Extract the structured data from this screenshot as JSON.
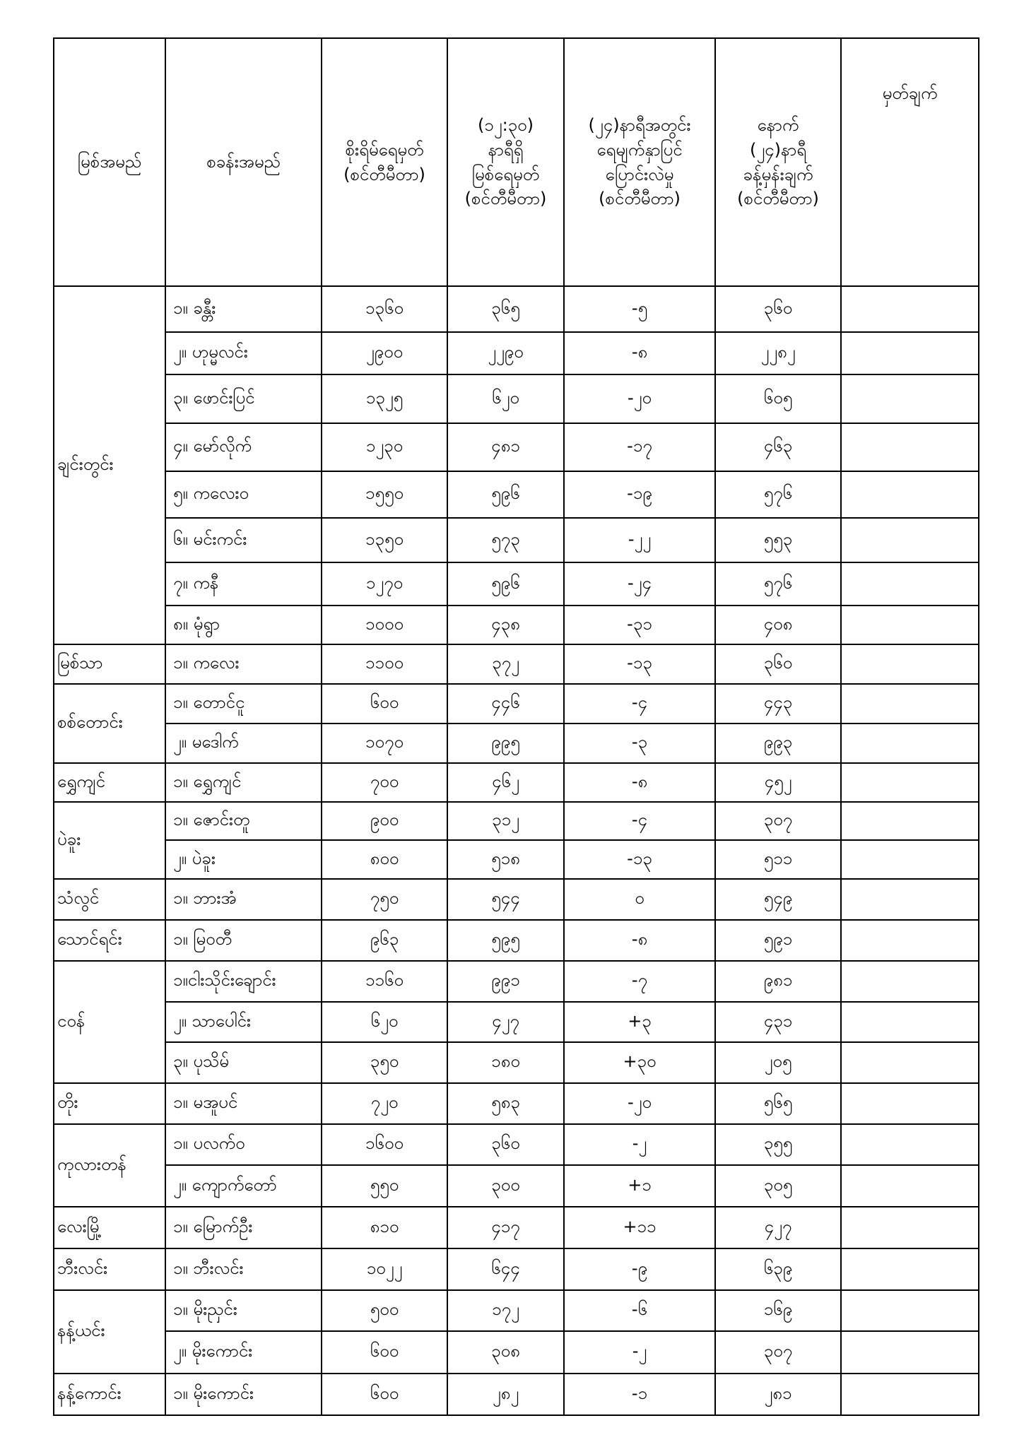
{
  "headers": {
    "river": "မြစ်အမည်",
    "station": "စခန်းအမည်",
    "danger": "စိုးရိမ်ရေမှတ်\n(စင်တီမီတာ)",
    "current": "(၁၂:၃၀)\nနာရီရှိ\nမြစ်ရေမှတ်\n(စင်တီမီတာ)",
    "change": "(၂၄)နာရီအတွင်း\nရေမျက်နှာပြင်\nပြောင်းလဲမှု\n(စင်တီမီတာ)",
    "forecast": "နောက်\n(၂၄)နာရီ\nခန့်မှန်းချက်\n(စင်တီမီတာ)",
    "remark": "မှတ်ချက်"
  },
  "rivers": [
    {
      "name": "ချင်းတွင်း",
      "stations": [
        {
          "station": "၁။ ခန္တီး",
          "danger": "၁၃၆၀",
          "current": "၃၆၅",
          "change": "-၅",
          "forecast": "၃၆၀",
          "remark": ""
        },
        {
          "station": "၂။ ဟုမ္မလင်း",
          "danger": "၂၉၀၀",
          "current": "၂၂၉၀",
          "change": "-၈",
          "forecast": "၂၂၈၂",
          "remark": ""
        },
        {
          "station": "၃။ ဖောင်းပြင်",
          "danger": "၁၃၂၅",
          "current": "၆၂၀",
          "change": "-၂၀",
          "forecast": "၆၀၅",
          "remark": ""
        },
        {
          "station": "၄။ မော်လိုက်",
          "danger": "၁၂၃၀",
          "current": "၄၈၁",
          "change": "-၁၇",
          "forecast": "၄၆၃",
          "remark": ""
        },
        {
          "station": "၅။ ကလေးဝ",
          "danger": "၁၅၅၀",
          "current": "၅၉၆",
          "change": "-၁၉",
          "forecast": "၅၇၆",
          "remark": ""
        },
        {
          "station": "၆။ မင်းကင်း",
          "danger": "၁၃၅၀",
          "current": "၅၇၃",
          "change": "-၂၂",
          "forecast": "၅၅၃",
          "remark": ""
        },
        {
          "station": "၇။ ကနီ",
          "danger": "၁၂၇၀",
          "current": "၅၉၆",
          "change": "-၂၄",
          "forecast": "၅၇၆",
          "remark": ""
        },
        {
          "station": "၈။ မုံရွာ",
          "danger": "၁၀၀၀",
          "current": "၄၃၈",
          "change": "-၃၁",
          "forecast": "၄၀၈",
          "remark": ""
        }
      ]
    },
    {
      "name": "မြစ်သာ",
      "stations": [
        {
          "station": "၁။ ကလေး",
          "danger": "၁၁၀၀",
          "current": "၃၇၂",
          "change": "-၁၃",
          "forecast": "၃၆၀",
          "remark": ""
        }
      ]
    },
    {
      "name": "စစ်တောင်း",
      "stations": [
        {
          "station": "၁။ တောင်ငူ",
          "danger": "၆၀၀",
          "current": "၄၄၆",
          "change": "-၄",
          "forecast": "၄၄၃",
          "remark": ""
        },
        {
          "station": "၂။ မဒေါက်",
          "danger": "၁၀၇၀",
          "current": "၉၉၅",
          "change": "-၃",
          "forecast": "၉၉၃",
          "remark": ""
        }
      ]
    },
    {
      "name": "ရွှေကျင်",
      "stations": [
        {
          "station": "၁။ ရွှေကျင်",
          "danger": "၇၀၀",
          "current": "၄၆၂",
          "change": "-၈",
          "forecast": "၄၅၂",
          "remark": ""
        }
      ]
    },
    {
      "name": "ပဲခူး",
      "stations": [
        {
          "station": "၁။ ဇောင်းတူ",
          "danger": "၉၀၀",
          "current": "၃၁၂",
          "change": "-၄",
          "forecast": "၃၀၇",
          "remark": ""
        },
        {
          "station": "၂။ ပဲခူး",
          "danger": "၈၀၀",
          "current": "၅၁၈",
          "change": "-၁၃",
          "forecast": "၅၁၁",
          "remark": ""
        }
      ]
    },
    {
      "name": "သံလွင်",
      "stations": [
        {
          "station": "၁။ ဘားအံ",
          "danger": "၇၅၀",
          "current": "၅၄၄",
          "change": "၀",
          "forecast": "၅၄၉",
          "remark": ""
        }
      ]
    },
    {
      "name": "သောင်ရင်း",
      "stations": [
        {
          "station": "၁။ မြဝတီ",
          "danger": "၉၆၃",
          "current": "၅၉၅",
          "change": "-၈",
          "forecast": "၅၉၁",
          "remark": ""
        }
      ]
    },
    {
      "name": "ငဝန်",
      "stations": [
        {
          "station": "၁။ငါးသိုင်းချောင်း",
          "danger": "၁၁၆၀",
          "current": "၉၉၁",
          "change": "-၇",
          "forecast": "၉၈၁",
          "remark": ""
        },
        {
          "station": "၂။ သာပေါင်း",
          "danger": "၆၂၀",
          "current": "၄၂၇",
          "change": "+၃",
          "forecast": "၄၃၁",
          "remark": ""
        },
        {
          "station": "၃။ ပုသိမ်",
          "danger": "၃၅၀",
          "current": "၁၈၀",
          "change": "+၃၀",
          "forecast": "၂၀၅",
          "remark": ""
        }
      ]
    },
    {
      "name": "တိုး",
      "stations": [
        {
          "station": "၁။ မအူပင်",
          "danger": "၇၂၀",
          "current": "၅၈၃",
          "change": "-၂၀",
          "forecast": "၅၆၅",
          "remark": ""
        }
      ]
    },
    {
      "name": "ကုလားတန်",
      "stations": [
        {
          "station": "၁။ ပလက်ဝ",
          "danger": "၁၆၀၀",
          "current": "၃၆၀",
          "change": "-၂",
          "forecast": "၃၅၅",
          "remark": ""
        },
        {
          "station": "၂။ ကျောက်တော်",
          "danger": "၅၅၀",
          "current": "၃၀၀",
          "change": "+၁",
          "forecast": "၃၀၅",
          "remark": ""
        }
      ]
    },
    {
      "name": "လေးမြို့",
      "stations": [
        {
          "station": "၁။ မြောက်ဦး",
          "danger": "၈၁၀",
          "current": "၄၁၇",
          "change": "+၁၁",
          "forecast": "၄၂၇",
          "remark": ""
        }
      ]
    },
    {
      "name": "ဘီးလင်း",
      "stations": [
        {
          "station": "၁။ ဘီးလင်း",
          "danger": "၁၀၂၂",
          "current": "၆၄၄",
          "change": "-၉",
          "forecast": "၆၃၉",
          "remark": ""
        }
      ]
    },
    {
      "name": "နန့်ယင်း",
      "stations": [
        {
          "station": "၁။ မိုးညှင်း",
          "danger": "၅၀၀",
          "current": "၁၇၂",
          "change": "-၆",
          "forecast": "၁၆၉",
          "remark": ""
        },
        {
          "station": "၂။ မိုးကောင်း",
          "danger": "၆၀၀",
          "current": "၃၀၈",
          "change": "-၂",
          "forecast": "၃၀၇",
          "remark": ""
        }
      ]
    },
    {
      "name": "နန့်ကောင်း",
      "stations": [
        {
          "station": "၁။ မိုးကောင်း",
          "danger": "၆၀၀",
          "current": "၂၈၂",
          "change": "-၁",
          "forecast": "၂၈၁",
          "remark": ""
        }
      ]
    }
  ]
}
